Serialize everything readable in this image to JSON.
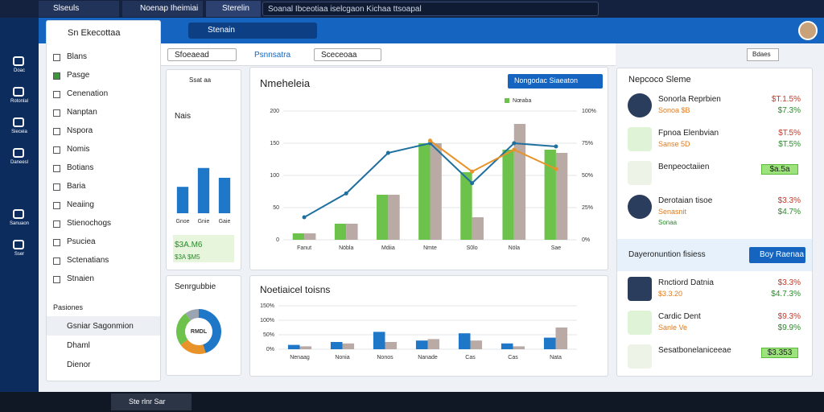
{
  "tabs": [
    "Slseuls",
    "Noenap Iheimiai",
    "Sterelin",
    "Soanal Ibceotiaa iselcgaon Kichaa ttsoapal"
  ],
  "header": {
    "search": "Stenain"
  },
  "rail": [
    "Doac",
    "Rotonlal",
    "Sieceia",
    "Daneesl",
    "Sanuaon",
    "Sser"
  ],
  "sidebar": {
    "title": "Sn Ekecottaa",
    "items": [
      "Blans",
      "Pasge",
      "Cenenation",
      "Nanptan",
      "Nspora",
      "Nomis",
      "Botians",
      "Baria",
      "Neaiing",
      "Stienochogs",
      "Psuciea",
      "Sctenatians",
      "Stnaien"
    ],
    "section": "Pasiones",
    "footer": [
      "Gsniar Sagonmion",
      "Dhaml",
      "Dienor"
    ]
  },
  "toolbar": {
    "dropdown": "Sfoeaead",
    "tab": "Psnnsatra",
    "filter": "Sceceoaa",
    "button": "Bdaes"
  },
  "summary": {
    "name": "Ssat aa",
    "title": "Nais",
    "amount": "$3A.M6",
    "change": "$3A $M5",
    "donut_title": "Senrgubbie",
    "donut_center": "RMDL"
  },
  "main_card": {
    "title": "Nmeheleia",
    "button": "Nongodac Siaeaton"
  },
  "lower_card": {
    "title": "Noetiaicel toisns"
  },
  "right_panel": {
    "title": "Nepcoco Sleme",
    "entries": [
      {
        "name": "Sonorla Reprbien",
        "sub": "Sonoa $B",
        "v1": "$T.1.5%",
        "v2": "$7.3%"
      },
      {
        "name": "Fpnoa Elenbvian",
        "sub": "Sanse 5D",
        "v1": "$T.5%",
        "v2": "$T.5%"
      },
      {
        "name": "Benpeoctaiien",
        "badge": "$a.5a"
      },
      {
        "name": "Derotaian tisoe",
        "sub": "Senasnit",
        "extra": "Sonaa",
        "v1": "$3.3%",
        "v2": "$4.7%"
      }
    ],
    "banner": "Dayeronuntion fisiess",
    "banner_button": "Boy Raenaa",
    "entries2": [
      {
        "name": "Rnctiord Datnia",
        "sub": "$3.3.20",
        "v1": "$3.3%",
        "v2": "$4.7.3%"
      },
      {
        "name": "Cardic Dent",
        "sub": "Sanle Ve",
        "v1": "$9.3%",
        "v2": "$9.9%"
      },
      {
        "name": "Sesatbonelaniceeae",
        "badge": "$3.353"
      }
    ]
  },
  "taskbar": {
    "app": "Ste rlnr Sar"
  },
  "chart_data": [
    {
      "type": "bar",
      "categories": [
        "Fanut",
        "Nöbla",
        "Mdiia",
        "Nmte",
        "S0lo",
        "Nöla",
        "Sae"
      ],
      "ylim": [
        0,
        200
      ],
      "yticks": [
        0,
        50,
        100,
        150,
        200
      ],
      "y2lim": [
        0,
        100
      ],
      "y2ticks": [
        {
          "value": 0,
          "label": "0%"
        },
        {
          "value": 25,
          "label": "25%"
        },
        {
          "value": 50,
          "label": "50%"
        },
        {
          "value": 75,
          "label": "75%"
        },
        {
          "value": 100,
          "label": "100%"
        }
      ],
      "grid": true,
      "series": [
        {
          "name": "Nœaba",
          "color": "#6cc24a",
          "values": [
            10,
            25,
            70,
            150,
            105,
            140,
            140
          ]
        },
        {
          "color": "#b9aaa5",
          "values": [
            10,
            25,
            70,
            150,
            35,
            180,
            135
          ]
        },
        {
          "type": "line",
          "color": "#1f6f9f",
          "values": [
            35,
            72,
            135,
            150,
            88,
            150,
            145
          ]
        },
        {
          "type": "line",
          "color": "#e8922a",
          "values": [
            null,
            null,
            null,
            154,
            106,
            140,
            110
          ]
        }
      ]
    },
    {
      "type": "bar",
      "categories": [
        "Gnoe",
        "Gnie",
        "Gaie"
      ],
      "ylim": [
        0,
        80
      ],
      "color": "#1f77c8",
      "series": [
        {
          "color": "#1f77c8",
          "values": [
            35,
            60,
            47
          ]
        }
      ]
    },
    {
      "type": "bar",
      "categories": [
        "Nenaag",
        "Nonia",
        "Nonos",
        "Nanade",
        "Cas",
        "Cas",
        "Nata"
      ],
      "ylim": [
        0,
        150
      ],
      "yticks": [
        {
          "value": 0,
          "label": "0%"
        },
        {
          "value": 50,
          "label": "50%"
        },
        {
          "value": 100,
          "label": "100%"
        },
        {
          "value": 150,
          "label": "150%"
        }
      ],
      "grid": true,
      "series": [
        {
          "color": "#1f77c8",
          "values": [
            15,
            25,
            60,
            30,
            55,
            20,
            40
          ]
        },
        {
          "color": "#b9aaa5",
          "values": [
            10,
            20,
            25,
            35,
            30,
            10,
            75
          ]
        }
      ]
    },
    {
      "type": "pie",
      "values": [
        45,
        20,
        25,
        10
      ],
      "colors": [
        "#1f77c8",
        "#e8922a",
        "#6cc24a",
        "#9aa5b1"
      ]
    }
  ]
}
